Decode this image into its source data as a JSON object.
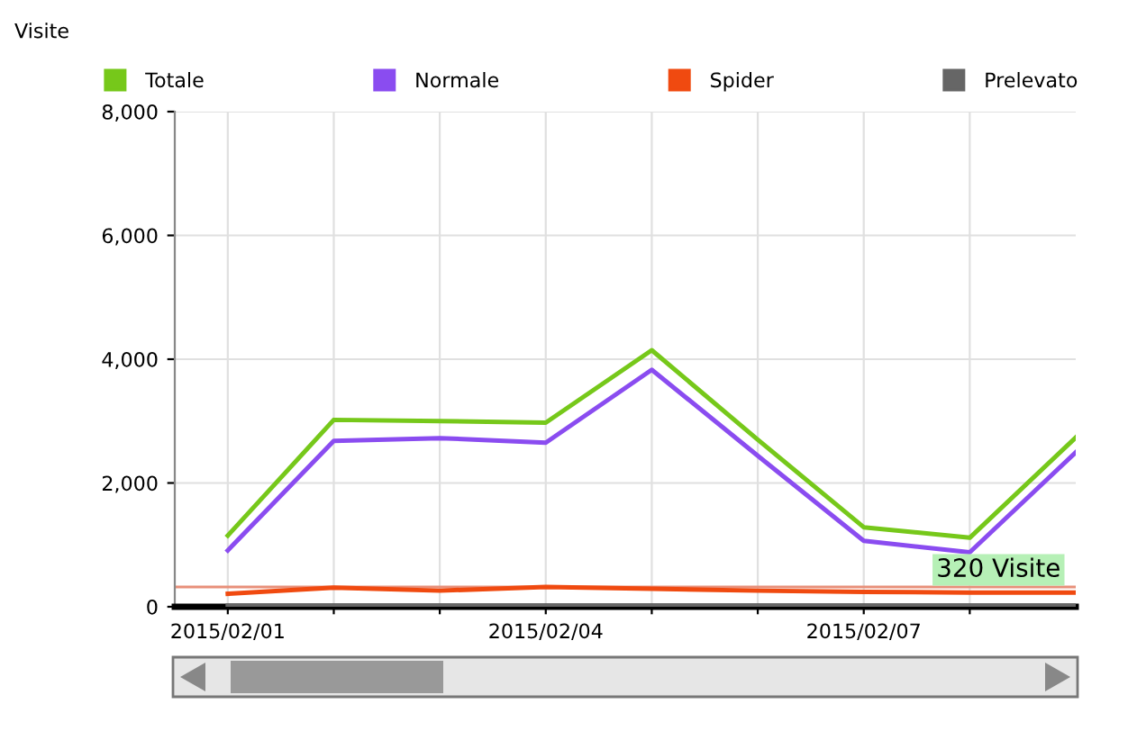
{
  "chart_data": {
    "type": "line",
    "ylabel": "Visite",
    "x": [
      "2015-02-01",
      "2015-02-02",
      "2015-02-03",
      "2015-02-04",
      "2015-02-05",
      "2015-02-06",
      "2015-02-07",
      "2015-02-08",
      "2015-02-09"
    ],
    "series": [
      {
        "name": "Totale",
        "color": "#76c81a",
        "values": [
          1150,
          3020,
          3000,
          2975,
          4145,
          2700,
          1285,
          1115,
          2735
        ]
      },
      {
        "name": "Normale",
        "color": "#8a4cf0",
        "values": [
          910,
          2680,
          2725,
          2650,
          3830,
          2440,
          1065,
          880,
          2495
        ]
      },
      {
        "name": "Spider",
        "color": "#f04a10",
        "values": [
          210,
          310,
          260,
          320,
          290,
          260,
          240,
          230,
          230
        ]
      },
      {
        "name": "Prelevato",
        "color": "#666666",
        "values": [
          20,
          20,
          20,
          20,
          20,
          20,
          20,
          20,
          20
        ]
      }
    ],
    "xlim": [
      "2015-01-31T12:00",
      "2015-02-09"
    ],
    "xticks": [
      {
        "value": "2015-02-01",
        "label": "2015/02/01"
      },
      {
        "value": "2015-02-02",
        "label": null
      },
      {
        "value": "2015-02-03",
        "label": null
      },
      {
        "value": "2015-02-04",
        "label": "2015/02/04"
      },
      {
        "value": "2015-02-05",
        "label": null
      },
      {
        "value": "2015-02-06",
        "label": null
      },
      {
        "value": "2015-02-07",
        "label": "2015/02/07"
      },
      {
        "value": "2015-02-08",
        "label": null
      }
    ],
    "ylim": [
      0,
      8000
    ],
    "yticks": [
      {
        "value": 0,
        "label": "0"
      },
      {
        "value": 2000,
        "label": "2,000"
      },
      {
        "value": 4000,
        "label": "4,000"
      },
      {
        "value": 6000,
        "label": "6,000"
      },
      {
        "value": 8000,
        "label": "8,000"
      }
    ],
    "ref_lines": [
      {
        "axis": "y",
        "value": 320,
        "label": "320 Visite",
        "color": "#e8907a"
      }
    ],
    "grid": true,
    "legend": "top",
    "marker": "none",
    "line_style": "solid"
  }
}
